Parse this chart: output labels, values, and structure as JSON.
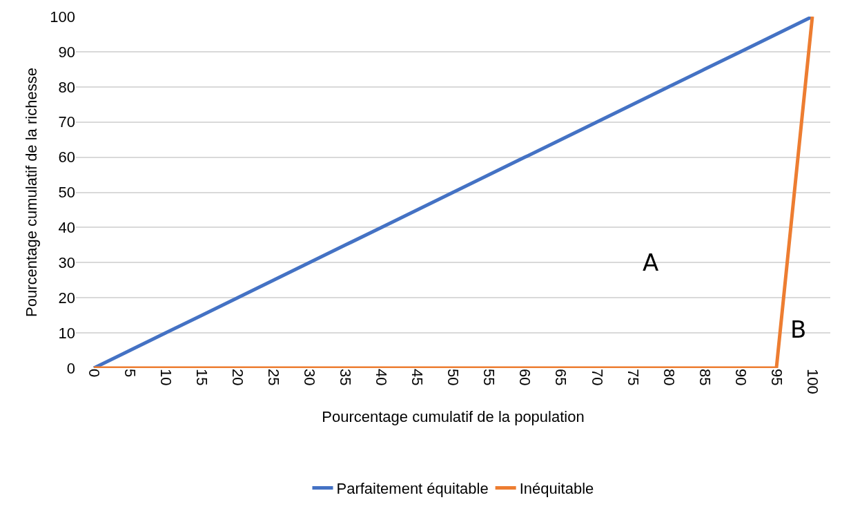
{
  "chart_data": {
    "type": "line",
    "xlabel": "Pourcentage cumulatif de la population",
    "ylabel": "Pourcentage cumulatif de la richesse",
    "categories": [
      "0",
      "5",
      "10",
      "15",
      "20",
      "25",
      "30",
      "35",
      "40",
      "45",
      "50",
      "55",
      "60",
      "65",
      "70",
      "75",
      "80",
      "85",
      "90",
      "95",
      "100"
    ],
    "series": [
      {
        "name": "Parfaitement équitable",
        "color": "#4472c4",
        "values": [
          0,
          5,
          10,
          15,
          20,
          25,
          30,
          35,
          40,
          45,
          50,
          55,
          60,
          65,
          70,
          75,
          80,
          85,
          90,
          95,
          100
        ]
      },
      {
        "name": "Inéquitable",
        "color": "#ed7d31",
        "values": [
          0,
          0,
          0,
          0,
          0,
          0,
          0,
          0,
          0,
          0,
          0,
          0,
          0,
          0,
          0,
          0,
          0,
          0,
          0,
          0,
          100
        ]
      }
    ],
    "ylim": [
      0,
      100
    ],
    "yticks": [
      0,
      10,
      20,
      30,
      40,
      50,
      60,
      70,
      80,
      90,
      100
    ],
    "grid": "y",
    "legend": "bottom",
    "marker": "none",
    "line_style": "solid",
    "annotations": [
      "A",
      "B"
    ]
  }
}
